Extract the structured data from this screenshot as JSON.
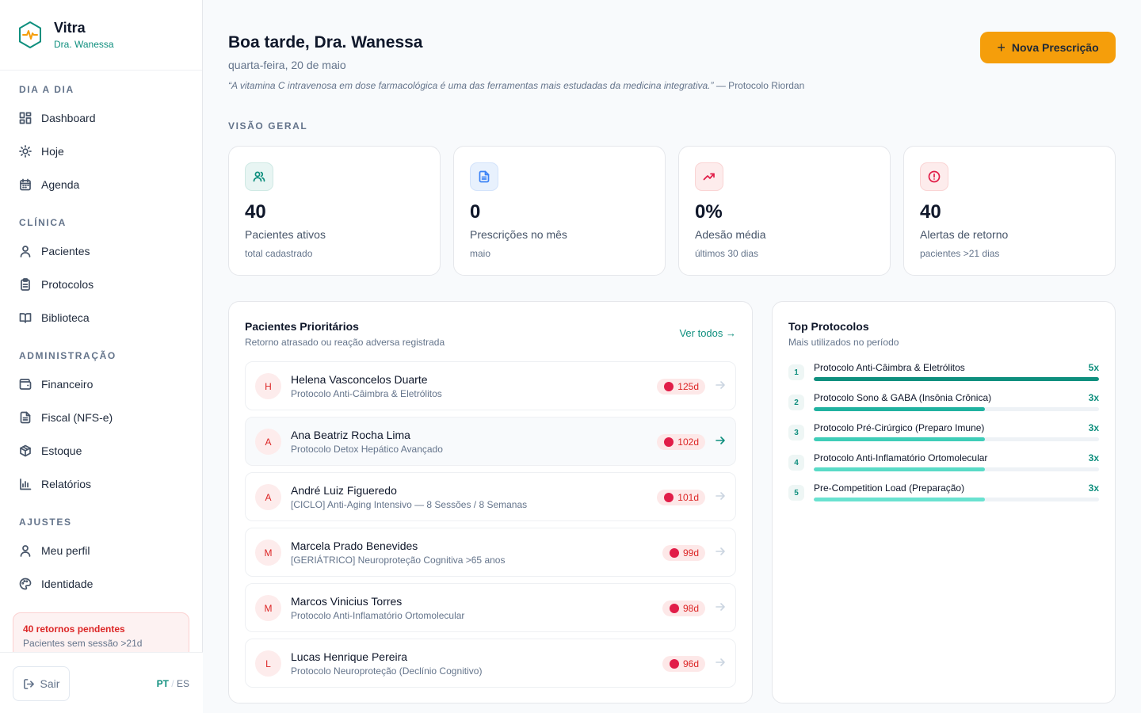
{
  "brand": {
    "name": "Vitra",
    "user": "Dra. Wanessa"
  },
  "nav": {
    "sections": [
      {
        "title": "DIA A DIA",
        "items": [
          {
            "label": "Dashboard",
            "icon": "dashboard-icon"
          },
          {
            "label": "Hoje",
            "icon": "sun-icon"
          },
          {
            "label": "Agenda",
            "icon": "calendar-icon"
          }
        ]
      },
      {
        "title": "CLÍNICA",
        "items": [
          {
            "label": "Pacientes",
            "icon": "user-icon"
          },
          {
            "label": "Protocolos",
            "icon": "clipboard-icon"
          },
          {
            "label": "Biblioteca",
            "icon": "book-icon"
          }
        ]
      },
      {
        "title": "ADMINISTRAÇÃO",
        "items": [
          {
            "label": "Financeiro",
            "icon": "wallet-icon"
          },
          {
            "label": "Fiscal (NFS-e)",
            "icon": "file-text-icon"
          },
          {
            "label": "Estoque",
            "icon": "package-icon"
          },
          {
            "label": "Relatórios",
            "icon": "bar-chart-icon"
          }
        ]
      },
      {
        "title": "AJUSTES",
        "items": [
          {
            "label": "Meu perfil",
            "icon": "user-icon"
          },
          {
            "label": "Identidade",
            "icon": "palette-icon"
          }
        ]
      }
    ]
  },
  "sidebar_alert": {
    "title": "40 retornos pendentes",
    "subtitle": "Pacientes sem sessão >21d"
  },
  "footer": {
    "logout": "Sair",
    "lang_pt": "PT",
    "lang_sep": "/",
    "lang_es": "ES"
  },
  "header": {
    "greeting": "Boa tarde, Dra. Wanessa",
    "date": "quarta-feira, 20 de maio",
    "quote": "“A vitamina C intravenosa em dose farmacológica é uma das ferramentas mais estudadas da medicina integrativa.”",
    "quote_source": " — Protocolo Riordan",
    "new_button": "Nova Prescrição",
    "new_button_icon": "+"
  },
  "overview": {
    "label": "VISÃO GERAL",
    "stats": [
      {
        "value": "40",
        "label": "Pacientes ativos",
        "sub": "total cadastrado",
        "icon": "users-icon",
        "color": "#0f8f7e",
        "bg": "#e8f5f3"
      },
      {
        "value": "0",
        "label": "Prescrições no mês",
        "sub": "maio",
        "icon": "file-icon",
        "color": "#3b82f6",
        "bg": "#e8f1fd"
      },
      {
        "value": "0%",
        "label": "Adesão média",
        "sub": "últimos 30 dias",
        "icon": "trending-up-icon",
        "color": "#e11d48",
        "bg": "#fdecec"
      },
      {
        "value": "40",
        "label": "Alertas de retorno",
        "sub": "pacientes >21 dias",
        "icon": "alert-circle-icon",
        "color": "#e11d48",
        "bg": "#fdecec"
      }
    ]
  },
  "priority": {
    "title": "Pacientes Prioritários",
    "subtitle": "Retorno atrasado ou reação adversa registrada",
    "see_all": "Ver todos →",
    "patients": [
      {
        "initial": "H",
        "name": "Helena Vasconcelos Duarte",
        "protocol": "Protocolo Anti-Câimbra & Eletrólitos",
        "days": "125d"
      },
      {
        "initial": "A",
        "name": "Ana Beatriz Rocha Lima",
        "protocol": "Protocolo Detox Hepático Avançado",
        "days": "102d"
      },
      {
        "initial": "A",
        "name": "André Luiz Figueredo",
        "protocol": "[CICLO] Anti-Aging Intensivo — 8 Sessões / 8 Semanas",
        "days": "101d"
      },
      {
        "initial": "M",
        "name": "Marcela Prado Benevides",
        "protocol": "[GERIÁTRICO] Neuroproteção Cognitiva >65 anos",
        "days": "99d"
      },
      {
        "initial": "M",
        "name": "Marcos Vinicius Torres",
        "protocol": "Protocolo Anti-Inflamatório Ortomolecular",
        "days": "98d"
      },
      {
        "initial": "L",
        "name": "Lucas Henrique Pereira",
        "protocol": "Protocolo Neuroproteção (Declínio Cognitivo)",
        "days": "96d"
      }
    ]
  },
  "top_protocols": {
    "title": "Top Protocolos",
    "subtitle": "Mais utilizados no período",
    "items": [
      {
        "rank": "1",
        "name": "Protocolo Anti-Câimbra & Eletrólitos",
        "count": "5x",
        "fraction": 1.0,
        "color": "#0f8f7e"
      },
      {
        "rank": "2",
        "name": "Protocolo Sono & GABA (Insônia Crônica)",
        "count": "3x",
        "fraction": 0.6,
        "color": "#20b2a0"
      },
      {
        "rank": "3",
        "name": "Protocolo Pré-Cirúrgico (Preparo Imune)",
        "count": "3x",
        "fraction": 0.6,
        "color": "#3fcdb8"
      },
      {
        "rank": "4",
        "name": "Protocolo Anti-Inflamatório Ortomolecular",
        "count": "3x",
        "fraction": 0.6,
        "color": "#5adbc7"
      },
      {
        "rank": "5",
        "name": "Pre-Competition Load (Preparação)",
        "count": "3x",
        "fraction": 0.6,
        "color": "#6ae2d0"
      }
    ]
  }
}
